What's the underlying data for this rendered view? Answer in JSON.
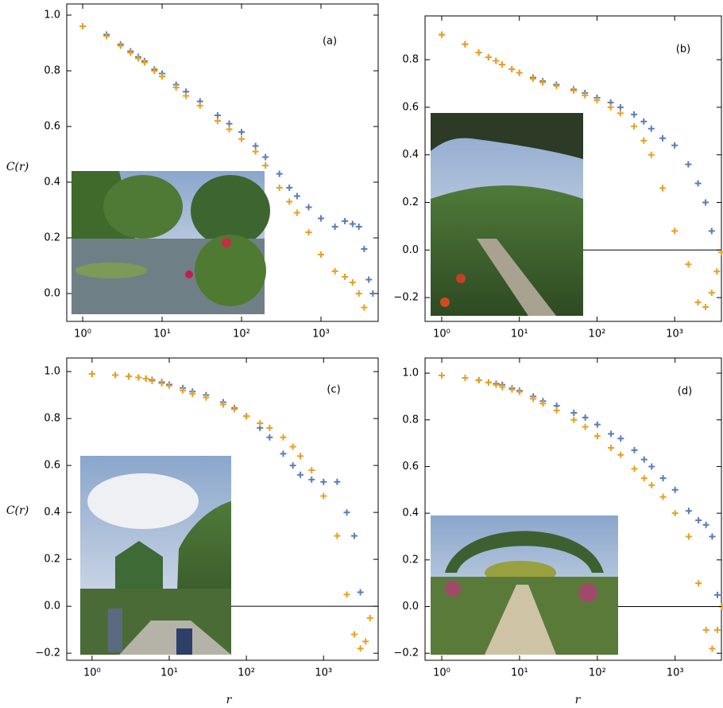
{
  "chart_data": [
    {
      "type": "scatter",
      "title": "(a)",
      "ylabel": "C(r)",
      "xscale": "log",
      "hline": null,
      "x": [
        1,
        2,
        3,
        4,
        5,
        6,
        8,
        10,
        15,
        20,
        30,
        50,
        70,
        100,
        150,
        200,
        300,
        400,
        500,
        700,
        1000,
        1500,
        2000,
        2500,
        3000,
        3500,
        4000,
        4500
      ],
      "series": [
        {
          "name": "blue",
          "color": "#5a7dbb",
          "values": [
            0.96,
            0.93,
            0.895,
            0.87,
            0.85,
            0.835,
            0.805,
            0.79,
            0.75,
            0.725,
            0.69,
            0.64,
            0.61,
            0.58,
            0.53,
            0.49,
            0.43,
            0.38,
            0.35,
            0.31,
            0.27,
            0.24,
            0.26,
            0.25,
            0.24,
            0.16,
            0.05,
            0.0
          ]
        },
        {
          "name": "orange",
          "color": "#e8a020",
          "values": [
            0.96,
            0.925,
            0.89,
            0.865,
            0.845,
            0.83,
            0.8,
            0.78,
            0.74,
            0.71,
            0.675,
            0.62,
            0.59,
            0.555,
            0.51,
            0.46,
            0.38,
            0.33,
            0.29,
            0.22,
            0.14,
            0.08,
            0.06,
            0.04,
            0.0,
            -0.05,
            null,
            null
          ]
        }
      ],
      "xlim": [
        0.63,
        5250
      ],
      "ylim": [
        -0.1,
        1.04
      ],
      "xticks": [
        {
          "value": 1,
          "label": "10⁰"
        },
        {
          "value": 10,
          "label": "10¹"
        },
        {
          "value": 100,
          "label": "10²"
        },
        {
          "value": 1000,
          "label": "10³"
        }
      ],
      "yticks": [
        {
          "value": 0,
          "label": "0.0"
        },
        0.2,
        0.4,
        0.6,
        0.8,
        {
          "value": 1,
          "label": "1.0"
        }
      ]
    },
    {
      "type": "scatter",
      "title": "(b)",
      "xscale": "log",
      "hline": 0,
      "x": [
        1,
        2,
        3,
        4,
        5,
        6,
        8,
        10,
        15,
        20,
        30,
        50,
        70,
        100,
        150,
        200,
        300,
        400,
        500,
        700,
        1000,
        1500,
        2000,
        2500,
        3000,
        3500,
        4000
      ],
      "series": [
        {
          "name": "blue",
          "color": "#5a7dbb",
          "values": [
            0.905,
            0.865,
            0.83,
            0.81,
            0.795,
            0.78,
            0.76,
            0.745,
            0.725,
            0.71,
            0.695,
            0.675,
            0.66,
            0.64,
            0.62,
            0.6,
            0.57,
            0.54,
            0.51,
            0.47,
            0.44,
            0.36,
            0.28,
            0.2,
            0.08,
            null,
            null
          ]
        },
        {
          "name": "orange",
          "color": "#e8a020",
          "values": [
            0.905,
            0.865,
            0.83,
            0.81,
            0.795,
            0.78,
            0.76,
            0.745,
            0.72,
            0.705,
            0.69,
            0.67,
            0.65,
            0.63,
            0.6,
            0.575,
            0.52,
            0.46,
            0.4,
            0.26,
            0.08,
            -0.06,
            -0.22,
            -0.24,
            -0.18,
            -0.09,
            -0.01
          ]
        }
      ],
      "xlim": [
        0.61,
        4000
      ],
      "ylim": [
        -0.3,
        0.984
      ],
      "xticks": [
        {
          "value": 1,
          "label": "10⁰"
        },
        {
          "value": 10,
          "label": "10¹"
        },
        {
          "value": 100,
          "label": "10²"
        },
        {
          "value": 1000,
          "label": "10³"
        }
      ],
      "yticks": [
        {
          "value": -0.2,
          "label": "−0.2"
        },
        {
          "value": 0,
          "label": "0.0"
        },
        0.2,
        0.4,
        0.6,
        0.8
      ]
    },
    {
      "type": "scatter",
      "title": "(c)",
      "ylabel": "C(r)",
      "xlabel": "r",
      "xscale": "log",
      "hline": 0,
      "x": [
        1,
        2,
        3,
        4,
        5,
        6,
        8,
        10,
        15,
        20,
        30,
        50,
        70,
        100,
        150,
        200,
        300,
        400,
        500,
        700,
        1000,
        1500,
        2000,
        2500,
        3000,
        3500,
        4000
      ],
      "series": [
        {
          "name": "blue",
          "color": "#5a7dbb",
          "values": [
            0.99,
            0.985,
            0.98,
            0.975,
            0.97,
            0.965,
            0.955,
            0.945,
            0.93,
            0.915,
            0.9,
            0.87,
            0.845,
            0.81,
            0.76,
            0.72,
            0.65,
            0.6,
            0.56,
            0.54,
            0.53,
            0.53,
            0.4,
            0.3,
            0.06,
            null,
            null
          ]
        },
        {
          "name": "orange",
          "color": "#e8a020",
          "values": [
            0.99,
            0.985,
            0.98,
            0.975,
            0.97,
            0.96,
            0.95,
            0.94,
            0.92,
            0.905,
            0.89,
            0.86,
            0.84,
            0.81,
            0.78,
            0.76,
            0.72,
            0.68,
            0.64,
            0.58,
            0.47,
            0.3,
            0.05,
            -0.12,
            -0.18,
            -0.15,
            -0.05
          ]
        }
      ],
      "xlim": [
        0.47,
        5100
      ],
      "ylim": [
        -0.23,
        1.058
      ],
      "xticks": [
        {
          "value": 1,
          "label": "10⁰"
        },
        {
          "value": 10,
          "label": "10¹"
        },
        {
          "value": 100,
          "label": "10²"
        },
        {
          "value": 1000,
          "label": "10³"
        }
      ],
      "yticks": [
        {
          "value": -0.2,
          "label": "−0.2"
        },
        {
          "value": 0,
          "label": "0.0"
        },
        0.2,
        0.4,
        0.6,
        0.8,
        {
          "value": 1,
          "label": "1.0"
        }
      ]
    },
    {
      "type": "scatter",
      "title": "(d)",
      "xlabel": "r",
      "xscale": "log",
      "hline": 0,
      "x": [
        1,
        2,
        3,
        4,
        5,
        6,
        8,
        10,
        15,
        20,
        30,
        50,
        70,
        100,
        150,
        200,
        300,
        400,
        500,
        700,
        1000,
        1500,
        2000,
        2500,
        3000,
        3500,
        4000
      ],
      "series": [
        {
          "name": "blue",
          "color": "#5a7dbb",
          "values": [
            0.99,
            0.98,
            0.97,
            0.96,
            0.955,
            0.95,
            0.935,
            0.925,
            0.9,
            0.88,
            0.86,
            0.83,
            0.81,
            0.78,
            0.74,
            0.72,
            0.67,
            0.63,
            0.6,
            0.55,
            0.5,
            0.41,
            0.37,
            0.35,
            0.3,
            0.05,
            null
          ]
        },
        {
          "name": "orange",
          "color": "#e8a020",
          "values": [
            0.99,
            0.98,
            0.97,
            0.96,
            0.95,
            0.94,
            0.93,
            0.92,
            0.89,
            0.87,
            0.84,
            0.8,
            0.77,
            0.73,
            0.68,
            0.65,
            0.59,
            0.55,
            0.52,
            0.47,
            0.4,
            0.3,
            0.1,
            -0.1,
            -0.18,
            -0.1,
            0.0
          ]
        }
      ],
      "xlim": [
        0.61,
        3940
      ],
      "ylim": [
        -0.23,
        1.065
      ],
      "xticks": [
        {
          "value": 1,
          "label": "10⁰"
        },
        {
          "value": 10,
          "label": "10¹"
        },
        {
          "value": 100,
          "label": "10²"
        },
        {
          "value": 1000,
          "label": "10³"
        }
      ],
      "yticks": [
        {
          "value": -0.2,
          "label": "−0.2"
        },
        {
          "value": 0,
          "label": "0.0"
        },
        0.2,
        0.4,
        0.6,
        0.8,
        {
          "value": 1,
          "label": "1.0"
        }
      ]
    }
  ]
}
